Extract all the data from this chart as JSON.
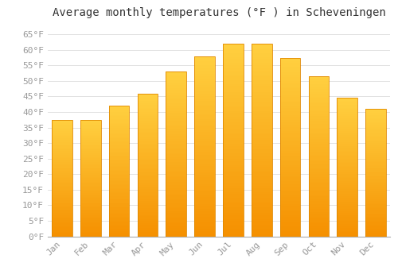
{
  "title": "Average monthly temperatures (°F ) in Scheveningen",
  "months": [
    "Jan",
    "Feb",
    "Mar",
    "Apr",
    "May",
    "Jun",
    "Jul",
    "Aug",
    "Sep",
    "Oct",
    "Nov",
    "Dec"
  ],
  "values": [
    37.5,
    37.5,
    42,
    46,
    53,
    58,
    62,
    62,
    57.5,
    51.5,
    44.5,
    41
  ],
  "bar_color_top": "#FFD040",
  "bar_color_bottom": "#F59000",
  "bar_edge_color": "#E08800",
  "background_color": "#FFFFFF",
  "grid_color": "#DDDDDD",
  "title_fontsize": 10,
  "tick_fontsize": 8,
  "tick_color": "#999999",
  "ylim": [
    0,
    68
  ],
  "yticks": [
    0,
    5,
    10,
    15,
    20,
    25,
    30,
    35,
    40,
    45,
    50,
    55,
    60,
    65
  ]
}
